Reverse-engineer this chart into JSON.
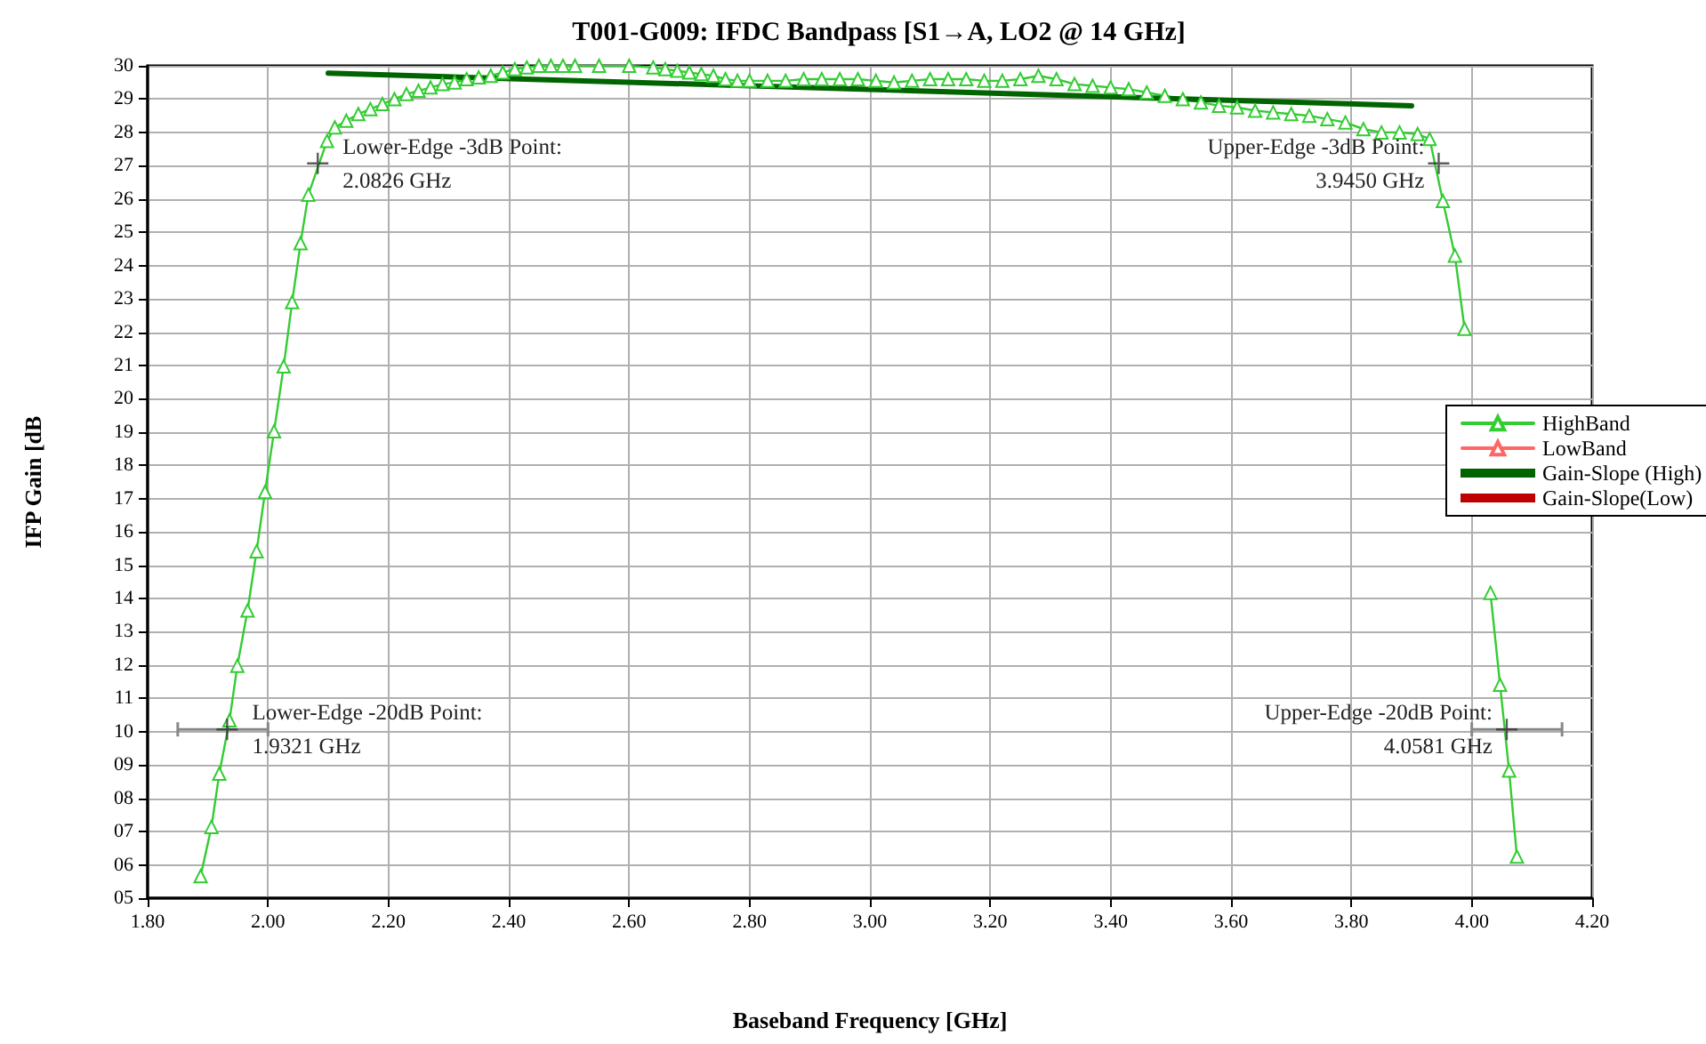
{
  "chart_data": {
    "type": "line",
    "title": "T001-G009: IFDC Bandpass [S1→A, LO2 @ 14 GHz]",
    "xlabel": "Baseband Frequency [GHz]",
    "ylabel": "IFP Gain [dB",
    "xlim": [
      1.8,
      4.2
    ],
    "ylim": [
      5,
      30
    ],
    "xticks": [
      {
        "value": 1.8,
        "label": "1.80"
      },
      {
        "value": 2.0,
        "label": "2.00"
      },
      {
        "value": 2.2,
        "label": "2.20"
      },
      {
        "value": 2.4,
        "label": "2.40"
      },
      {
        "value": 2.6,
        "label": "2.60"
      },
      {
        "value": 2.8,
        "label": "2.80"
      },
      {
        "value": 3.0,
        "label": "3.00"
      },
      {
        "value": 3.2,
        "label": "3.20"
      },
      {
        "value": 3.4,
        "label": "3.40"
      },
      {
        "value": 3.6,
        "label": "3.60"
      },
      {
        "value": 3.8,
        "label": "3.80"
      },
      {
        "value": 4.0,
        "label": "4.00"
      },
      {
        "value": 4.2,
        "label": "4.20"
      }
    ],
    "yticks": [
      {
        "value": 5,
        "label": "05"
      },
      {
        "value": 6,
        "label": "06"
      },
      {
        "value": 7,
        "label": "07"
      },
      {
        "value": 8,
        "label": "08"
      },
      {
        "value": 9,
        "label": "09"
      },
      10,
      11,
      12,
      13,
      14,
      15,
      16,
      17,
      18,
      19,
      20,
      21,
      22,
      23,
      24,
      25,
      26,
      27,
      28,
      29,
      30
    ],
    "grid": true,
    "legend": "right",
    "series": [
      {
        "name": "HighBand",
        "color": "#33cc33",
        "marker": "triangle",
        "x": [
          1.888,
          1.906,
          1.919,
          1.936,
          1.949,
          1.966,
          1.981,
          1.995,
          2.01,
          2.026,
          2.04,
          2.054,
          2.067,
          2.098,
          2.111,
          2.13,
          2.15,
          2.17,
          2.19,
          2.21,
          2.23,
          2.25,
          2.27,
          2.29,
          2.31,
          2.33,
          2.35,
          2.37,
          2.39,
          2.41,
          2.43,
          2.45,
          2.47,
          2.49,
          2.51,
          2.55,
          2.6,
          2.64,
          2.66,
          2.68,
          2.7,
          2.72,
          2.74,
          2.76,
          2.78,
          2.8,
          2.83,
          2.86,
          2.89,
          2.92,
          2.95,
          2.98,
          3.01,
          3.04,
          3.07,
          3.1,
          3.13,
          3.16,
          3.19,
          3.22,
          3.25,
          3.28,
          3.31,
          3.34,
          3.37,
          3.4,
          3.43,
          3.46,
          3.49,
          3.52,
          3.55,
          3.58,
          3.61,
          3.64,
          3.67,
          3.7,
          3.73,
          3.76,
          3.79,
          3.82,
          3.85,
          3.88,
          3.91,
          3.93,
          3.952,
          3.972,
          3.988,
          4.002,
          4.016,
          4.031,
          4.047,
          4.062,
          4.075
        ],
        "values": [
          5.66,
          7.14,
          8.74,
          10.34,
          11.98,
          13.64,
          15.42,
          17.2,
          19.02,
          20.97,
          22.9,
          24.67,
          26.13,
          27.74,
          28.15,
          28.35,
          28.55,
          28.7,
          28.85,
          29.0,
          29.15,
          29.25,
          29.35,
          29.45,
          29.5,
          29.6,
          29.65,
          29.7,
          29.8,
          29.9,
          29.95,
          30.0,
          30.0,
          30.0,
          30.0,
          30.0,
          30.0,
          29.95,
          29.9,
          29.85,
          29.8,
          29.75,
          29.7,
          29.6,
          29.55,
          29.55,
          29.55,
          29.55,
          29.6,
          29.6,
          29.6,
          29.6,
          29.55,
          29.5,
          29.55,
          29.6,
          29.6,
          29.6,
          29.55,
          29.55,
          29.6,
          29.7,
          29.6,
          29.45,
          29.4,
          29.35,
          29.3,
          29.2,
          29.1,
          29.0,
          28.9,
          28.8,
          28.75,
          28.65,
          28.6,
          28.55,
          28.5,
          28.4,
          28.3,
          28.1,
          28.0,
          28.0,
          27.95,
          27.8,
          25.94,
          24.3,
          22.1,
          null,
          null,
          14.17,
          11.41,
          8.83,
          6.25
        ]
      },
      {
        "name": "LowBand",
        "color": "#ff6666",
        "marker": "triangle"
      },
      {
        "name": "Gain-Slope (High)",
        "color": "#006400",
        "marker": "none",
        "x": [
          2.1,
          3.9
        ],
        "values": [
          29.78,
          28.8
        ]
      },
      {
        "name": "Gain-Slope(Low)",
        "color": "#c00000",
        "marker": "none"
      },
      {
        "type": "scatter",
        "color": "#333333",
        "marker": "cross",
        "x": [
          2.0826,
          3.945
        ],
        "values": [
          27.07,
          27.07
        ]
      },
      {
        "type": "scatter",
        "color": "#333333",
        "marker": "cross",
        "x": [
          1.9321,
          4.0581
        ],
        "values": [
          10.07,
          10.07
        ],
        "xerrors": [
          [
            1.85,
            2.0
          ],
          [
            4.0,
            4.15
          ]
        ]
      }
    ],
    "annotations": [
      {
        "text": "Lower-Edge -3dB Point:\n2.0826 GHz",
        "x": 2.0826,
        "y": 27.07
      },
      {
        "text": "Upper-Edge -3dB Point:\n3.9450 GHz",
        "x": 3.945,
        "y": 27.07
      },
      {
        "text": "Lower-Edge -20dB Point:\n1.9321 GHz",
        "x": 1.9321,
        "y": 10.07
      },
      {
        "text": "Upper-Edge -20dB Point:\n4.0581 GHz",
        "x": 4.0581,
        "y": 10.07
      }
    ]
  }
}
